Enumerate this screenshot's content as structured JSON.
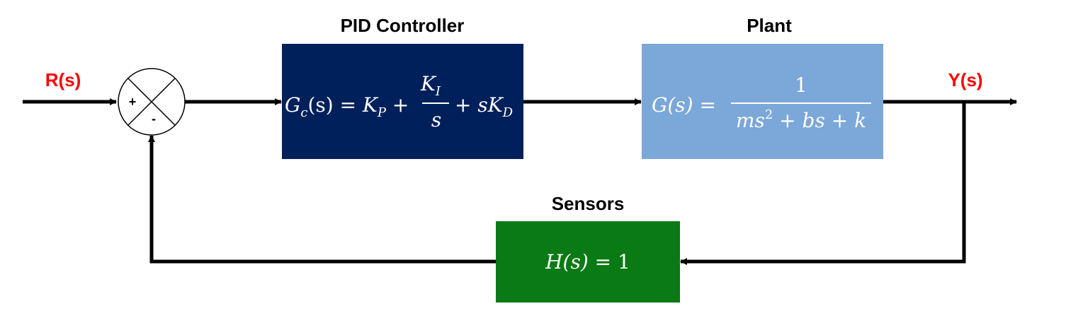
{
  "colors": {
    "signal_label": "#ff0000",
    "controller_fill": "#00205b",
    "plant_fill": "#7ba7d9",
    "sensor_fill": "#0a7a14",
    "line": "#000000"
  },
  "signals": {
    "input": "R(s)",
    "output": "Y(s)"
  },
  "summing_junction": {
    "plus_sign": "+",
    "minus_sign": "-"
  },
  "controller": {
    "title": "PID Controller",
    "lhs_G": "G",
    "lhs_sub": "c",
    "lhs_arg": "(s) = ",
    "kp": "K",
    "kp_sub": "P",
    "plus1": " + ",
    "frac_num": "K",
    "frac_num_sub": "I",
    "frac_den": "s",
    "plus2": "+ ",
    "kd_s": "s",
    "kd": "K",
    "kd_sub": "D"
  },
  "plant": {
    "title": "Plant",
    "lhs": "G(s) =",
    "numerator": "1",
    "den_m": "ms",
    "den_sup": "2",
    "den_rest": " + bs + k"
  },
  "sensor": {
    "title": "Sensors",
    "equation_lhs": "H(s) = ",
    "equation_rhs": "1"
  }
}
